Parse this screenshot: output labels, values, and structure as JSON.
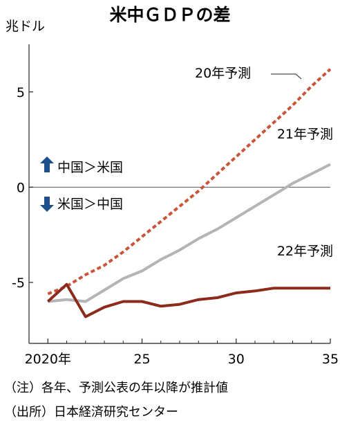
{
  "chart_data": {
    "type": "line",
    "title": "米中ＧＤＰの差",
    "unit_label": "兆ドル",
    "xlim": [
      2019,
      2035
    ],
    "ylim": [
      -8.2,
      7.5
    ],
    "x_ticks": [
      {
        "value": 2020,
        "label": "2020年"
      },
      {
        "value": 2025,
        "label": "25"
      },
      {
        "value": 2030,
        "label": "30"
      },
      {
        "value": 2035,
        "label": "35"
      }
    ],
    "y_ticks": [
      {
        "value": 5,
        "label": "5"
      },
      {
        "value": 0,
        "label": "0"
      },
      {
        "value": -5,
        "label": "-5"
      }
    ],
    "zero_line": true,
    "series": [
      {
        "name": "20年予測",
        "color": "#c8543a",
        "style": "dashed",
        "x": [
          2020,
          2021,
          2022,
          2023,
          2024,
          2025,
          2026,
          2027,
          2028,
          2029,
          2030,
          2031,
          2032,
          2033,
          2034,
          2035
        ],
        "y": [
          -5.6,
          -5.2,
          -4.6,
          -4.1,
          -3.4,
          -2.6,
          -1.8,
          -1.0,
          -0.2,
          0.7,
          1.6,
          2.5,
          3.4,
          4.3,
          5.3,
          6.2
        ]
      },
      {
        "name": "21年予測",
        "color": "#b4b4b4",
        "style": "solid",
        "x": [
          2020,
          2021,
          2022,
          2023,
          2024,
          2025,
          2026,
          2027,
          2028,
          2029,
          2030,
          2031,
          2032,
          2033,
          2034,
          2035
        ],
        "y": [
          -6.0,
          -5.9,
          -6.0,
          -5.4,
          -4.8,
          -4.4,
          -3.8,
          -3.3,
          -2.7,
          -2.2,
          -1.6,
          -1.0,
          -0.4,
          0.2,
          0.7,
          1.2
        ]
      },
      {
        "name": "22年予測",
        "color": "#8c2a1c",
        "style": "solid",
        "x": [
          2020,
          2021,
          2022,
          2023,
          2024,
          2025,
          2026,
          2027,
          2028,
          2029,
          2030,
          2031,
          2032,
          2033,
          2034,
          2035
        ],
        "y": [
          -6.0,
          -5.1,
          -6.8,
          -6.3,
          -6.0,
          -6.0,
          -6.25,
          -6.15,
          -5.9,
          -5.8,
          -5.55,
          -5.45,
          -5.3,
          -5.3,
          -5.3,
          -5.3
        ]
      }
    ],
    "annotations": {
      "up": "中国＞米国",
      "down": "米国＞中国"
    },
    "notes": [
      "（注）各年、予測公表の年以降が推計値",
      "（出所）日本経済研究センター"
    ]
  },
  "colors": {
    "arrow": "#1f4f8a",
    "axis": "#222222",
    "zero_line": "#555555"
  },
  "icons": {
    "up": "arrow-up-icon",
    "down": "arrow-down-icon"
  }
}
